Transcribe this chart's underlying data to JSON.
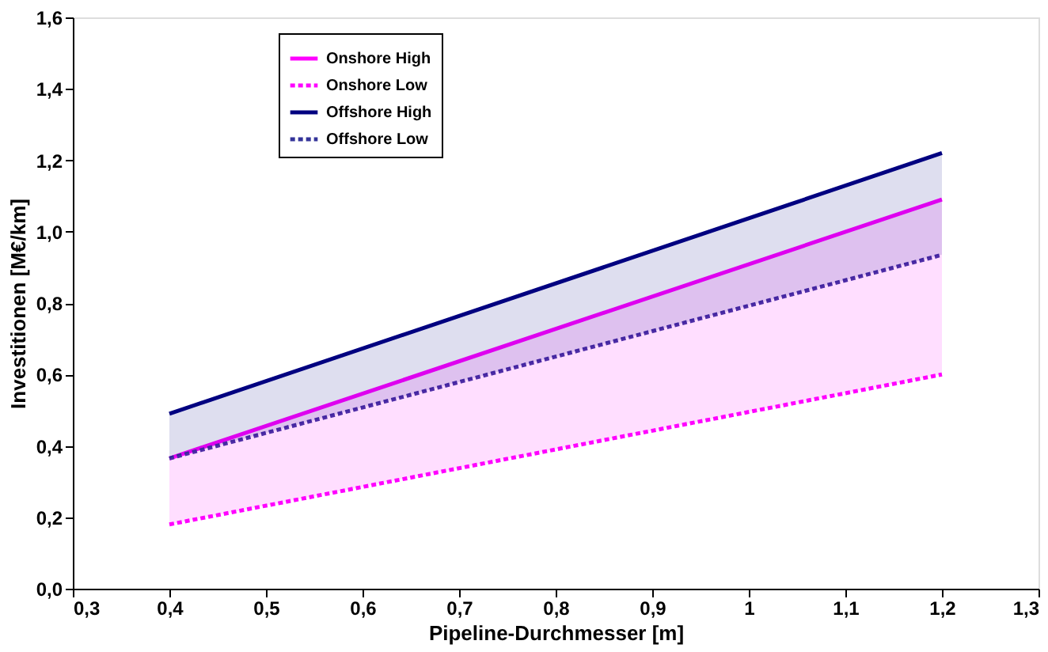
{
  "chart_data": {
    "type": "line",
    "xlabel": "Pipeline-Durchmesser [m]",
    "ylabel": "Investitionen [M€/km]",
    "xlim": [
      0.3,
      1.3
    ],
    "xticks": [
      {
        "value": 0.3,
        "label": "0,3"
      },
      {
        "value": 0.4,
        "label": "0,4"
      },
      {
        "value": 0.5,
        "label": "0,5"
      },
      {
        "value": 0.6,
        "label": "0,6"
      },
      {
        "value": 0.7,
        "label": "0,7"
      },
      {
        "value": 0.8,
        "label": "0,8"
      },
      {
        "value": 0.9,
        "label": "0,9"
      },
      1,
      {
        "value": 1.1,
        "label": "1,1"
      },
      {
        "value": 1.2,
        "label": "1,2"
      },
      {
        "value": 1.3,
        "label": "1,3"
      }
    ],
    "ylim": [
      0,
      1.6
    ],
    "yticks": [
      {
        "value": 0,
        "label": "0,0"
      },
      {
        "value": 0.2,
        "label": "0,2"
      },
      {
        "value": 0.4,
        "label": "0,4"
      },
      {
        "value": 0.6,
        "label": "0,6"
      },
      {
        "value": 0.8,
        "label": "0,8"
      },
      {
        "value": 1.0,
        "label": "1,0"
      },
      {
        "value": 1.2,
        "label": "1,2"
      },
      {
        "value": 1.4,
        "label": "1,4"
      },
      {
        "value": 1.6,
        "label": "1,6"
      }
    ],
    "x": [
      0.4,
      1.2
    ],
    "series": [
      {
        "name": "Onshore High",
        "color": "#ff00ff",
        "values": [
          0.365,
          1.09
        ],
        "line_style": "solid",
        "lower": [
          0.18,
          0.6
        ],
        "upper": [
          0.365,
          1.09
        ]
      },
      {
        "name": "Onshore Low",
        "color": "#ff00ff",
        "values": [
          0.18,
          0.6
        ],
        "line_style": "dashed"
      },
      {
        "name": "Offshore High",
        "color": "#000080",
        "values": [
          0.49,
          1.22
        ],
        "line_style": "solid",
        "lower": [
          0.365,
          0.935
        ],
        "upper": [
          0.49,
          1.22
        ]
      },
      {
        "name": "Offshore Low",
        "color": "#333399",
        "values": [
          0.365,
          0.935
        ],
        "line_style": "dashed"
      }
    ],
    "grid": false,
    "legend": "top left",
    "marker": "none"
  }
}
